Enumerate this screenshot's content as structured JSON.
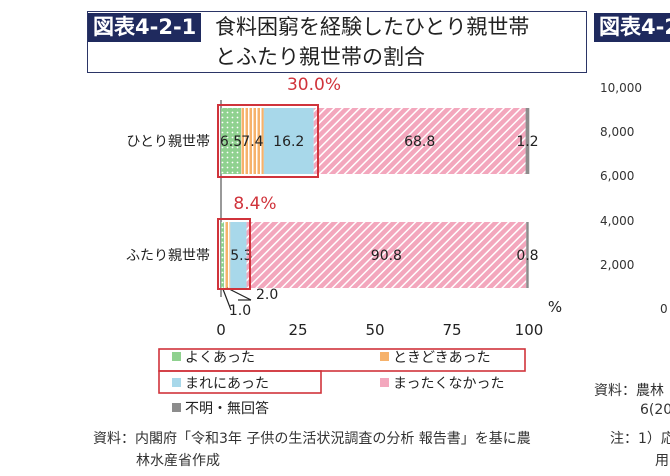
{
  "header": {
    "fig_num": "図表4-2-1",
    "title_line1": "食料困窮を経験したひとり親世帯",
    "title_line2": "とふたり親世帯の割合"
  },
  "chart_data": {
    "type": "bar",
    "orientation": "horizontal",
    "stacked": true,
    "categories": [
      "ひとり親世帯",
      "ふたり親世帯"
    ],
    "series": [
      {
        "name": "よくあった",
        "values": [
          6.5,
          1.0
        ],
        "color": "#8fd18f",
        "data_labels": [
          "6.5",
          "1.0"
        ]
      },
      {
        "name": "ときどきあった",
        "values": [
          7.4,
          2.0
        ],
        "color": "#f6b26b",
        "data_labels": [
          "7.4",
          "2.0"
        ]
      },
      {
        "name": "まれにあった",
        "values": [
          16.2,
          5.3
        ],
        "color": "#a8d8ea",
        "data_labels": [
          "16.2",
          "5.3"
        ]
      },
      {
        "name": "まったくなかった",
        "values": [
          68.8,
          90.8
        ],
        "color": "#f3a7bd",
        "data_labels": [
          "68.8",
          "90.8"
        ]
      },
      {
        "name": "不明・無回答",
        "values": [
          1.2,
          0.8
        ],
        "color": "#8c8c8c",
        "data_labels": [
          "1.2",
          "0.8"
        ]
      }
    ],
    "highlights": [
      "30.0%",
      "8.4%"
    ],
    "xlim": [
      0,
      100
    ],
    "xticks": [
      "0",
      "25",
      "50",
      "75",
      "100"
    ],
    "xunit": "%",
    "legend_placement": "bottom",
    "highlight_color": "#d0333b"
  },
  "right_panel": {
    "fig_num": "図表4-2",
    "ticks": [
      "10,000",
      "8,000",
      "6,000",
      "4,000",
      "2,000",
      "0"
    ],
    "notes": [
      "資料：農林",
      "6(20",
      "注：1）応",
      "用"
    ]
  },
  "source": {
    "line1": "資料：内閣府「令和3年 子供の生活状況調査の分析 報告書」を基に農",
    "line2": "林水産省作成"
  }
}
